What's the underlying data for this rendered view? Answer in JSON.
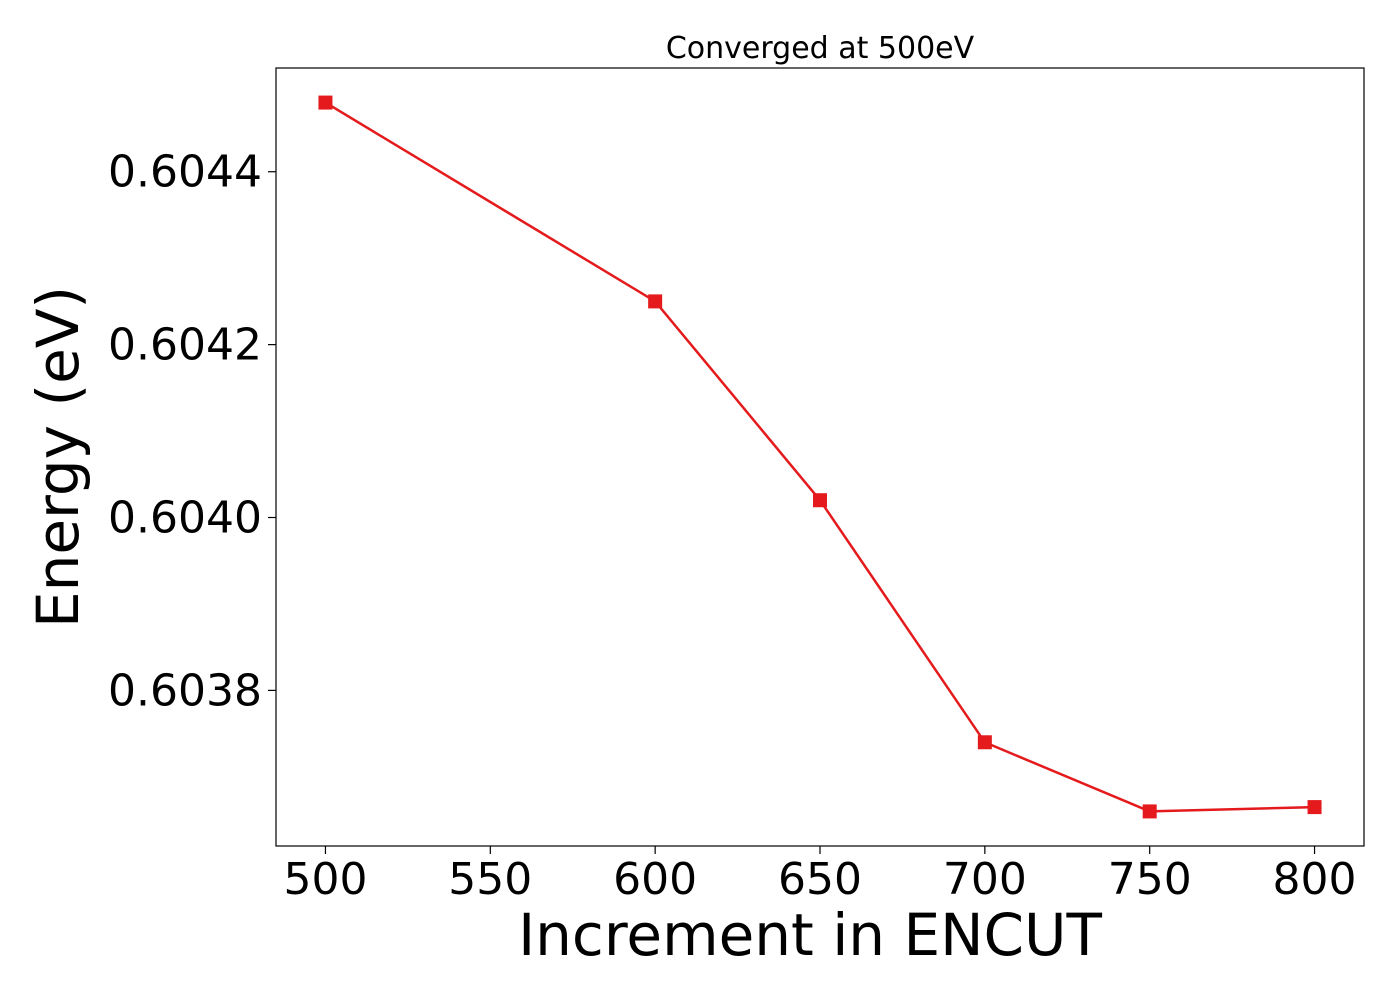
{
  "chart_data": {
    "type": "line",
    "title": "Converged at 500eV",
    "xlabel": "Increment in ENCUT",
    "ylabel": "Energy (eV)",
    "xlim": [
      485,
      815
    ],
    "ylim": [
      0.60362,
      0.60452
    ],
    "x_ticks": [
      500,
      550,
      600,
      650,
      700,
      750,
      800
    ],
    "y_ticks": [
      0.6038,
      0.604,
      0.6042,
      0.6044
    ],
    "y_tick_labels": [
      "0.6038",
      "0.6040",
      "0.6042",
      "0.6044"
    ],
    "grid": false,
    "series": [
      {
        "color": "#e41a1c",
        "marker": "square",
        "x": [
          500,
          600,
          650,
          700,
          750,
          800
        ],
        "y": [
          0.60448,
          0.60425,
          0.60402,
          0.60374,
          0.60366,
          0.603665
        ]
      }
    ]
  }
}
